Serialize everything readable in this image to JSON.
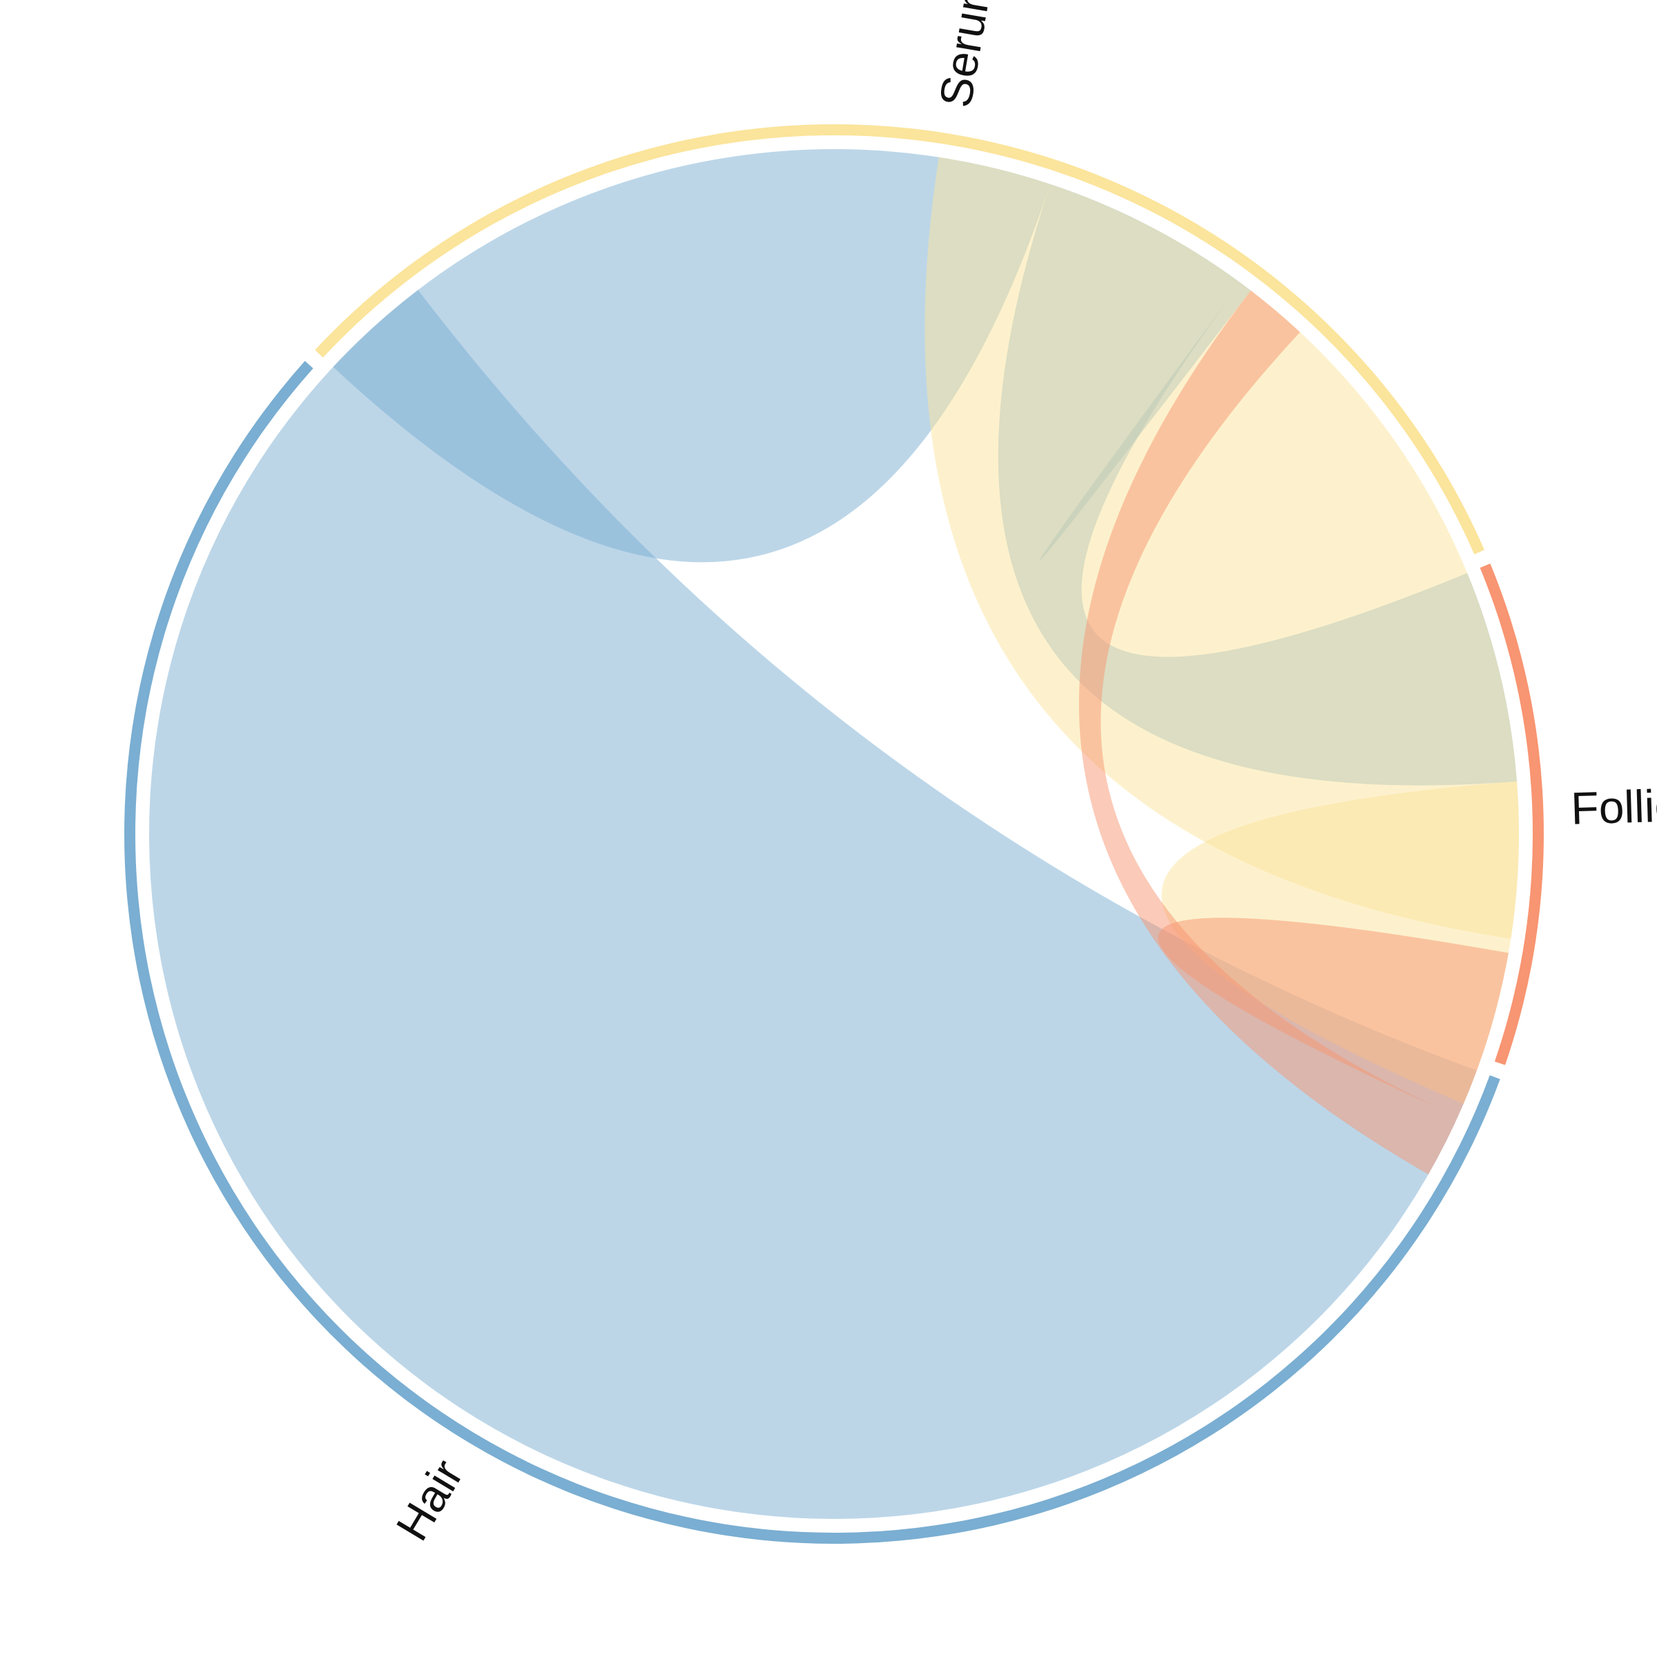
{
  "chart_data": {
    "type": "chord",
    "title": "",
    "groups": [
      {
        "name": "Serum",
        "color": "#fbe49b",
        "value": 63
      },
      {
        "name": "Follicular Fluid",
        "color": "#f89572",
        "value": 23
      },
      {
        "name": "Hair",
        "color": "#7aaed2",
        "value": 112
      }
    ],
    "ribbons": [
      {
        "source": "Hair",
        "target": "Hair",
        "value": 59,
        "color": "#7aaed2"
      },
      {
        "source": "Hair",
        "target": "Serum",
        "value": 31,
        "color": "#7aaed2"
      },
      {
        "source": "Hair",
        "target": "Follicular Fluid",
        "value": 10,
        "color": "#7aaed2"
      },
      {
        "source": "Hair",
        "target": "Hair",
        "value": 0.3,
        "color": "#7aaed2"
      },
      {
        "source": "Serum",
        "target": "Serum",
        "value": 25,
        "color": "#fbe49b"
      },
      {
        "source": "Serum",
        "target": "Follicular Fluid",
        "value": 8,
        "color": "#fbe49b"
      },
      {
        "source": "Follicular Fluid",
        "target": "Follicular Fluid",
        "value": 4,
        "color": "#f89572"
      },
      {
        "source": "Follicular Fluid",
        "target": "Hair",
        "value": 3,
        "color": "#f89572"
      }
    ]
  }
}
